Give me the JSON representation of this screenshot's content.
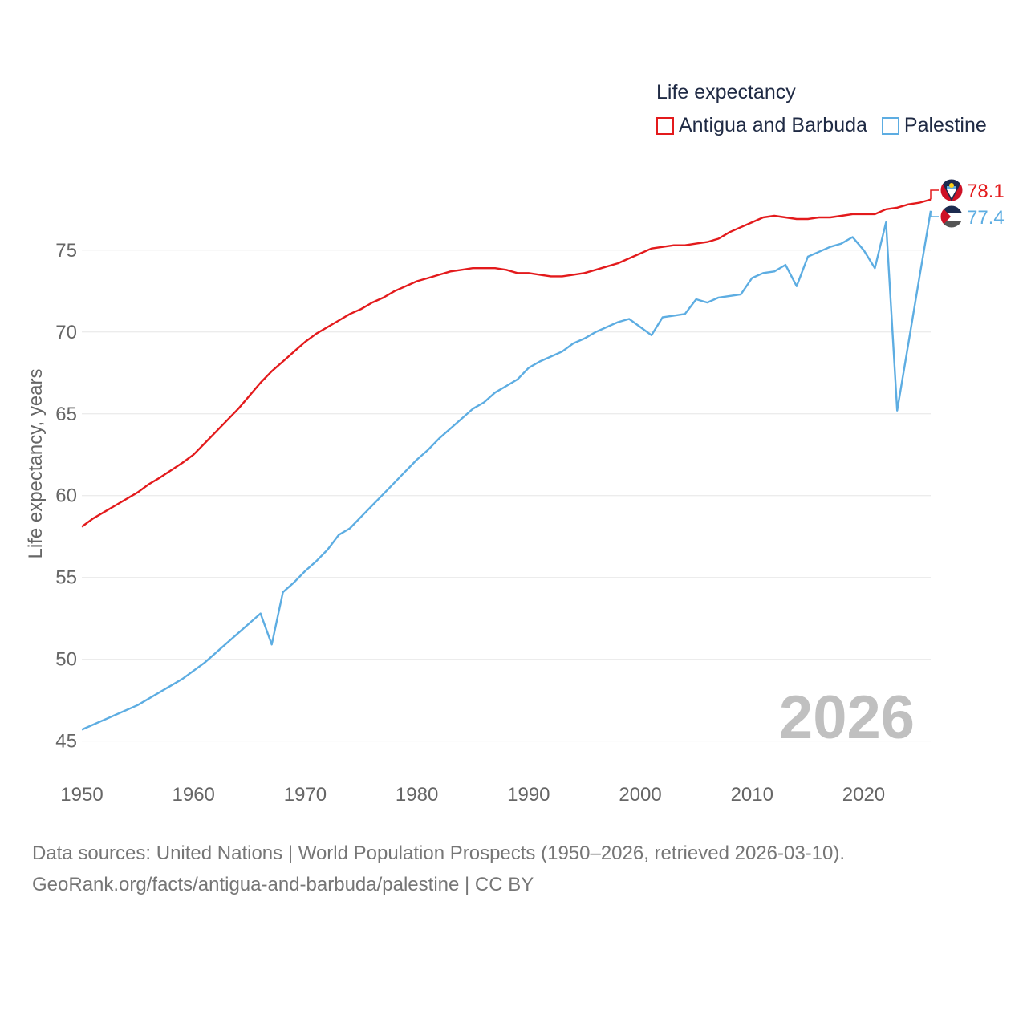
{
  "chart_data": {
    "type": "line",
    "ylabel": "Life expectancy, years",
    "xlabel": "",
    "legend_title": "Life expectancy",
    "year_watermark": "2026",
    "xlim": [
      1950,
      2026
    ],
    "ylim": [
      44.2,
      79.5
    ],
    "x_ticks": [
      "1950",
      "1960",
      "1970",
      "1980",
      "1990",
      "2000",
      "2010",
      "2020"
    ],
    "y_ticks": [
      "45",
      "50",
      "55",
      "60",
      "65",
      "70",
      "75"
    ],
    "series": [
      {
        "name": "Antigua and Barbuda",
        "color": "#e31a1c",
        "flag_icon": "antigua-and-barbuda-flag-icon",
        "end_label": "78.1",
        "x": [
          1950,
          1951,
          1953,
          1955,
          1956,
          1957,
          1959,
          1960,
          1962,
          1964,
          1965,
          1966,
          1967,
          1968,
          1969,
          1970,
          1971,
          1972,
          1973,
          1974,
          1975,
          1976,
          1977,
          1978,
          1979,
          1980,
          1981,
          1982,
          1983,
          1984,
          1985,
          1986,
          1987,
          1988,
          1989,
          1990,
          1991,
          1992,
          1993,
          1994,
          1995,
          1996,
          1997,
          1998,
          1999,
          2000,
          2001,
          2002,
          2003,
          2004,
          2005,
          2006,
          2007,
          2008,
          2009,
          2010,
          2011,
          2012,
          2013,
          2014,
          2015,
          2016,
          2017,
          2018,
          2019,
          2020,
          2021,
          2022,
          2023,
          2024,
          2025,
          2026
        ],
        "values": [
          58.1,
          58.6,
          59.4,
          60.2,
          60.7,
          61.1,
          62.0,
          62.5,
          63.9,
          65.3,
          66.1,
          66.9,
          67.6,
          68.2,
          68.8,
          69.4,
          69.9,
          70.3,
          70.7,
          71.1,
          71.4,
          71.8,
          72.1,
          72.5,
          72.8,
          73.1,
          73.3,
          73.5,
          73.7,
          73.8,
          73.9,
          73.9,
          73.9,
          73.8,
          73.6,
          73.6,
          73.5,
          73.4,
          73.4,
          73.5,
          73.6,
          73.8,
          74.0,
          74.2,
          74.5,
          74.8,
          75.1,
          75.2,
          75.3,
          75.3,
          75.4,
          75.5,
          75.7,
          76.1,
          76.4,
          76.7,
          77.0,
          77.1,
          77.0,
          76.9,
          76.9,
          77.0,
          77.0,
          77.1,
          77.2,
          77.2,
          77.2,
          77.5,
          77.6,
          77.8,
          77.9,
          78.1
        ]
      },
      {
        "name": "Palestine",
        "color": "#5dade2",
        "flag_icon": "palestine-flag-icon",
        "end_label": "77.4",
        "x": [
          1950,
          1955,
          1959,
          1961,
          1966,
          1967,
          1968,
          1969,
          1970,
          1971,
          1972,
          1973,
          1974,
          1975,
          1976,
          1977,
          1978,
          1979,
          1980,
          1981,
          1982,
          1983,
          1984,
          1985,
          1986,
          1987,
          1988,
          1989,
          1990,
          1991,
          1992,
          1993,
          1994,
          1995,
          1996,
          1997,
          1998,
          1999,
          2000,
          2001,
          2002,
          2003,
          2004,
          2005,
          2006,
          2007,
          2008,
          2009,
          2010,
          2011,
          2012,
          2013,
          2014,
          2015,
          2016,
          2017,
          2018,
          2019,
          2020,
          2021,
          2022,
          2023,
          2024,
          2025,
          2026
        ],
        "values": [
          45.7,
          47.2,
          48.8,
          49.8,
          52.8,
          50.9,
          54.1,
          54.7,
          55.4,
          56.0,
          56.7,
          57.6,
          58.0,
          58.7,
          59.4,
          60.1,
          60.8,
          61.5,
          62.2,
          62.8,
          63.5,
          64.1,
          64.7,
          65.3,
          65.7,
          66.3,
          66.7,
          67.1,
          67.8,
          68.2,
          68.5,
          68.8,
          69.3,
          69.6,
          70.0,
          70.3,
          70.6,
          70.8,
          70.3,
          69.8,
          70.9,
          71.0,
          71.1,
          72.0,
          71.8,
          72.1,
          72.2,
          72.3,
          73.3,
          73.6,
          73.7,
          74.1,
          72.8,
          74.6,
          74.9,
          75.2,
          75.4,
          75.8,
          75.0,
          73.9,
          76.7,
          65.2,
          69.3,
          73.4,
          77.4
        ]
      }
    ]
  },
  "footer": {
    "line1": "Data sources: United Nations | World Population Prospects (1950–2026, retrieved 2026-03-10).",
    "line2": "GeoRank.org/facts/antigua-and-barbuda/palestine | CC BY"
  }
}
